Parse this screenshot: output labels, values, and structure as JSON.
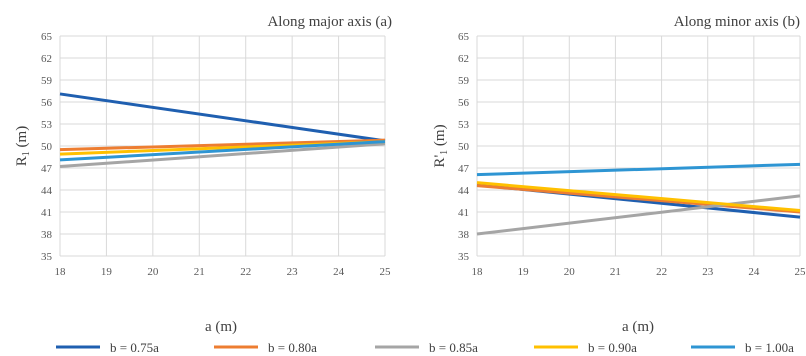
{
  "chart_data": [
    {
      "type": "line",
      "title": "Along major axis (a)",
      "xlabel": "a (m)",
      "ylabel_main": "R",
      "ylabel_sub": "1",
      "ylabel_suffix": " (m)",
      "x_ticks": [
        "18",
        "19",
        "20",
        "21",
        "22",
        "23",
        "24",
        "25"
      ],
      "y_ticks": [
        "35",
        "38",
        "41",
        "44",
        "47",
        "50",
        "53",
        "56",
        "59",
        "62",
        "65"
      ],
      "xlim": [
        18,
        25
      ],
      "ylim": [
        35,
        65
      ],
      "grid": true,
      "series": [
        {
          "name": "b = 0.75a",
          "color": "#1f5fb0",
          "x": [
            18,
            25
          ],
          "y": [
            57.1,
            50.7
          ]
        },
        {
          "name": "b = 0.80a",
          "color": "#ed7d31",
          "x": [
            18,
            25
          ],
          "y": [
            49.5,
            50.8
          ]
        },
        {
          "name": "b = 0.85a",
          "color": "#a5a5a5",
          "x": [
            18,
            25
          ],
          "y": [
            47.2,
            50.3
          ]
        },
        {
          "name": "b = 0.90a",
          "color": "#ffc000",
          "x": [
            18,
            25
          ],
          "y": [
            48.9,
            50.6
          ]
        },
        {
          "name": "b = 1.00a",
          "color": "#2e95d3",
          "x": [
            18,
            25
          ],
          "y": [
            48.1,
            50.6
          ]
        }
      ]
    },
    {
      "type": "line",
      "title": "Along minor axis (b)",
      "xlabel": "a (m)",
      "ylabel_main": "R'",
      "ylabel_sub": "1",
      "ylabel_suffix": " (m)",
      "x_ticks": [
        "18",
        "19",
        "20",
        "21",
        "22",
        "23",
        "24",
        "25"
      ],
      "y_ticks": [
        "35",
        "38",
        "41",
        "44",
        "47",
        "50",
        "53",
        "56",
        "59",
        "62",
        "65"
      ],
      "xlim": [
        18,
        25
      ],
      "ylim": [
        35,
        65
      ],
      "grid": true,
      "series": [
        {
          "name": "b = 0.75a",
          "color": "#1f5fb0",
          "x": [
            18,
            25
          ],
          "y": [
            44.7,
            40.3
          ]
        },
        {
          "name": "b = 0.80a",
          "color": "#ed7d31",
          "x": [
            18,
            25
          ],
          "y": [
            44.6,
            41.0
          ]
        },
        {
          "name": "b = 0.85a",
          "color": "#a5a5a5",
          "x": [
            18,
            25
          ],
          "y": [
            38.0,
            43.2
          ]
        },
        {
          "name": "b = 0.90a",
          "color": "#ffc000",
          "x": [
            18,
            25
          ],
          "y": [
            45.0,
            41.2
          ]
        },
        {
          "name": "b = 1.00a",
          "color": "#2e95d3",
          "x": [
            18,
            25
          ],
          "y": [
            46.1,
            47.5
          ]
        }
      ]
    }
  ],
  "legend": {
    "placement": "bottom",
    "items": [
      {
        "label": "b = 0.75a",
        "color": "#1f5fb0"
      },
      {
        "label": "b = 0.80a",
        "color": "#ed7d31"
      },
      {
        "label": "b = 0.85a",
        "color": "#a5a5a5"
      },
      {
        "label": "b = 0.90a",
        "color": "#ffc000"
      },
      {
        "label": "b = 1.00a",
        "color": "#2e95d3"
      }
    ]
  }
}
